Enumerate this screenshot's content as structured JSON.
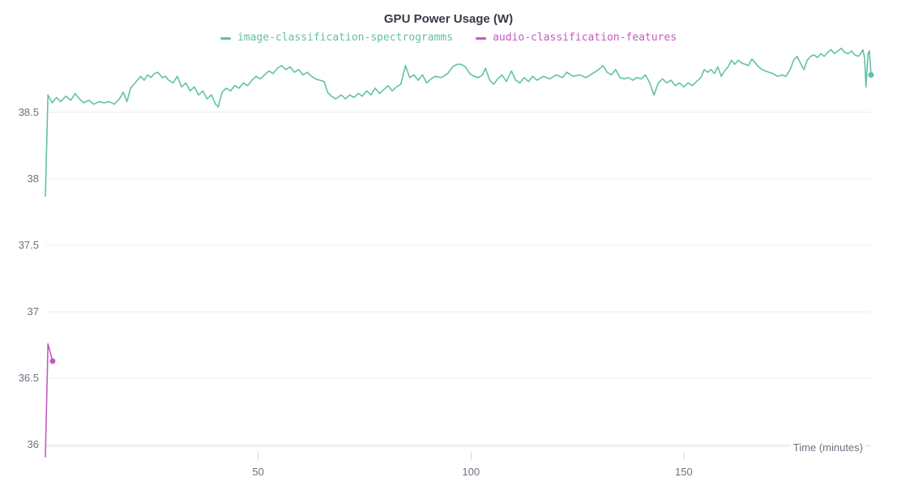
{
  "chart": {
    "title": "GPU Power Usage (W)",
    "x_axis_title": "Time (minutes)"
  },
  "chart_data": {
    "type": "line",
    "title": "GPU Power Usage (W)",
    "xlabel": "Time (minutes)",
    "ylabel": "",
    "x_range": [
      0,
      194
    ],
    "y_range": [
      35.99,
      38.99
    ],
    "x_ticks": [
      50,
      100,
      150
    ],
    "y_ticks": [
      36,
      36.5,
      37,
      37.5,
      38,
      38.5
    ],
    "grid": "horizontal-only",
    "legend_position": "top-center",
    "colors": {
      "series_1": "#62c1a8",
      "series_2": "#c45ac1",
      "grid_line": "#ededf0",
      "axis_line": "#e3e3e7",
      "tick_mark": "#d2d2d8",
      "axis_text": "#6a7280",
      "title_text": "#363a43"
    },
    "series": [
      {
        "name": "image-classification-spectrogramms",
        "color": "#62c1a8",
        "end_dot": true,
        "points": [
          [
            0,
            37.87
          ],
          [
            0.6,
            38.63
          ],
          [
            1.6,
            38.57
          ],
          [
            2.6,
            38.61
          ],
          [
            3.6,
            38.58
          ],
          [
            4.8,
            38.62
          ],
          [
            6,
            38.59
          ],
          [
            7,
            38.64
          ],
          [
            8,
            38.6
          ],
          [
            9,
            38.57
          ],
          [
            10.2,
            38.59
          ],
          [
            11.4,
            38.56
          ],
          [
            12.6,
            38.58
          ],
          [
            13.8,
            38.57
          ],
          [
            15,
            38.58
          ],
          [
            16.2,
            38.56
          ],
          [
            17.4,
            38.6
          ],
          [
            18.3,
            38.65
          ],
          [
            19.2,
            38.58
          ],
          [
            20,
            38.68
          ],
          [
            20.8,
            38.71
          ],
          [
            21.6,
            38.74
          ],
          [
            22.4,
            38.77
          ],
          [
            23.2,
            38.74
          ],
          [
            24,
            38.78
          ],
          [
            24.8,
            38.76
          ],
          [
            25.6,
            38.79
          ],
          [
            26.4,
            38.8
          ],
          [
            27.5,
            38.76
          ],
          [
            28.2,
            38.77
          ],
          [
            29,
            38.74
          ],
          [
            30,
            38.72
          ],
          [
            31,
            38.77
          ],
          [
            32,
            38.69
          ],
          [
            33,
            38.72
          ],
          [
            34,
            38.66
          ],
          [
            35,
            38.69
          ],
          [
            36,
            38.63
          ],
          [
            37,
            38.66
          ],
          [
            38,
            38.6
          ],
          [
            39,
            38.63
          ],
          [
            40,
            38.56
          ],
          [
            40.6,
            38.54
          ],
          [
            41.5,
            38.65
          ],
          [
            42.5,
            38.68
          ],
          [
            43.5,
            38.66
          ],
          [
            44.5,
            38.7
          ],
          [
            45.5,
            38.68
          ],
          [
            46.5,
            38.72
          ],
          [
            47.5,
            38.7
          ],
          [
            48.5,
            38.74
          ],
          [
            49.5,
            38.77
          ],
          [
            50.5,
            38.75
          ],
          [
            51.5,
            38.78
          ],
          [
            52.5,
            38.81
          ],
          [
            53.5,
            38.79
          ],
          [
            54.5,
            38.83
          ],
          [
            55.5,
            38.85
          ],
          [
            56.5,
            38.82
          ],
          [
            57.5,
            38.84
          ],
          [
            58.5,
            38.8
          ],
          [
            59.5,
            38.82
          ],
          [
            60.5,
            38.78
          ],
          [
            61.5,
            38.8
          ],
          [
            62.5,
            38.77
          ],
          [
            63.5,
            38.75
          ],
          [
            64.5,
            38.74
          ],
          [
            65.5,
            38.73
          ],
          [
            66.3,
            38.65
          ],
          [
            67.2,
            38.62
          ],
          [
            68.2,
            38.6
          ],
          [
            69.5,
            38.63
          ],
          [
            70.5,
            38.6
          ],
          [
            71.5,
            38.63
          ],
          [
            72.5,
            38.61
          ],
          [
            73.5,
            38.64
          ],
          [
            74.5,
            38.62
          ],
          [
            75.5,
            38.66
          ],
          [
            76.5,
            38.63
          ],
          [
            77.5,
            38.68
          ],
          [
            78.5,
            38.64
          ],
          [
            79.5,
            38.67
          ],
          [
            80.5,
            38.7
          ],
          [
            81.5,
            38.66
          ],
          [
            82.5,
            38.69
          ],
          [
            83.5,
            38.71
          ],
          [
            84.6,
            38.85
          ],
          [
            85.6,
            38.76
          ],
          [
            86.6,
            38.78
          ],
          [
            87.6,
            38.74
          ],
          [
            88.6,
            38.78
          ],
          [
            89.6,
            38.72
          ],
          [
            90.6,
            38.75
          ],
          [
            91.6,
            38.77
          ],
          [
            93,
            38.76
          ],
          [
            94.5,
            38.79
          ],
          [
            95.7,
            38.84
          ],
          [
            96.7,
            38.86
          ],
          [
            97.7,
            38.86
          ],
          [
            98.7,
            38.84
          ],
          [
            99.7,
            38.79
          ],
          [
            100.7,
            38.77
          ],
          [
            101.7,
            38.76
          ],
          [
            102.7,
            38.78
          ],
          [
            103.4,
            38.83
          ],
          [
            104.4,
            38.74
          ],
          [
            105.3,
            38.71
          ],
          [
            106.3,
            38.75
          ],
          [
            107.3,
            38.78
          ],
          [
            108.3,
            38.73
          ],
          [
            109.5,
            38.81
          ],
          [
            110.5,
            38.74
          ],
          [
            111.5,
            38.72
          ],
          [
            112.5,
            38.76
          ],
          [
            113.5,
            38.73
          ],
          [
            114.5,
            38.77
          ],
          [
            115.5,
            38.74
          ],
          [
            117,
            38.77
          ],
          [
            118.5,
            38.75
          ],
          [
            120,
            38.78
          ],
          [
            121.5,
            38.76
          ],
          [
            122.5,
            38.8
          ],
          [
            124,
            38.77
          ],
          [
            125.5,
            38.78
          ],
          [
            127,
            38.76
          ],
          [
            128.5,
            38.79
          ],
          [
            130,
            38.82
          ],
          [
            131,
            38.85
          ],
          [
            132,
            38.8
          ],
          [
            133,
            38.78
          ],
          [
            134,
            38.82
          ],
          [
            135,
            38.76
          ],
          [
            136,
            38.75
          ],
          [
            137,
            38.76
          ],
          [
            138,
            38.74
          ],
          [
            139,
            38.76
          ],
          [
            140,
            38.75
          ],
          [
            141,
            38.78
          ],
          [
            142,
            38.72
          ],
          [
            143,
            38.63
          ],
          [
            144,
            38.72
          ],
          [
            145,
            38.75
          ],
          [
            146,
            38.72
          ],
          [
            147,
            38.74
          ],
          [
            148,
            38.7
          ],
          [
            149,
            38.72
          ],
          [
            150,
            38.69
          ],
          [
            151,
            38.72
          ],
          [
            152,
            38.7
          ],
          [
            153,
            38.73
          ],
          [
            154,
            38.76
          ],
          [
            154.8,
            38.82
          ],
          [
            155.6,
            38.8
          ],
          [
            156.4,
            38.82
          ],
          [
            157.2,
            38.79
          ],
          [
            158,
            38.84
          ],
          [
            158.8,
            38.77
          ],
          [
            159.6,
            38.81
          ],
          [
            160.4,
            38.84
          ],
          [
            161.2,
            38.89
          ],
          [
            162,
            38.86
          ],
          [
            162.8,
            38.89
          ],
          [
            163.6,
            38.87
          ],
          [
            164.4,
            38.86
          ],
          [
            165.2,
            38.85
          ],
          [
            166,
            38.9
          ],
          [
            166.8,
            38.87
          ],
          [
            167.6,
            38.84
          ],
          [
            168.4,
            38.82
          ],
          [
            169.2,
            38.81
          ],
          [
            170,
            38.8
          ],
          [
            171,
            38.79
          ],
          [
            172,
            38.77
          ],
          [
            173,
            38.78
          ],
          [
            174,
            38.77
          ],
          [
            175,
            38.82
          ],
          [
            175.8,
            38.89
          ],
          [
            176.6,
            38.92
          ],
          [
            177.4,
            38.87
          ],
          [
            178.2,
            38.82
          ],
          [
            179,
            38.89
          ],
          [
            179.8,
            38.92
          ],
          [
            180.6,
            38.93
          ],
          [
            181.4,
            38.91
          ],
          [
            182.2,
            38.94
          ],
          [
            183,
            38.92
          ],
          [
            183.8,
            38.95
          ],
          [
            184.6,
            38.97
          ],
          [
            185.4,
            38.94
          ],
          [
            186.2,
            38.96
          ],
          [
            187,
            38.98
          ],
          [
            187.8,
            38.95
          ],
          [
            188.6,
            38.94
          ],
          [
            189.4,
            38.96
          ],
          [
            190.2,
            38.93
          ],
          [
            191,
            38.92
          ],
          [
            191.6,
            38.94
          ],
          [
            192.1,
            38.97
          ],
          [
            192.5,
            38.9
          ],
          [
            192.8,
            38.69
          ],
          [
            193.3,
            38.94
          ],
          [
            193.6,
            38.96
          ],
          [
            194,
            38.78
          ]
        ]
      },
      {
        "name": "audio-classification-features",
        "color": "#c45ac1",
        "end_dot": true,
        "points": [
          [
            0,
            35.91
          ],
          [
            0.6,
            36.76
          ],
          [
            1.7,
            36.63
          ]
        ]
      }
    ]
  }
}
